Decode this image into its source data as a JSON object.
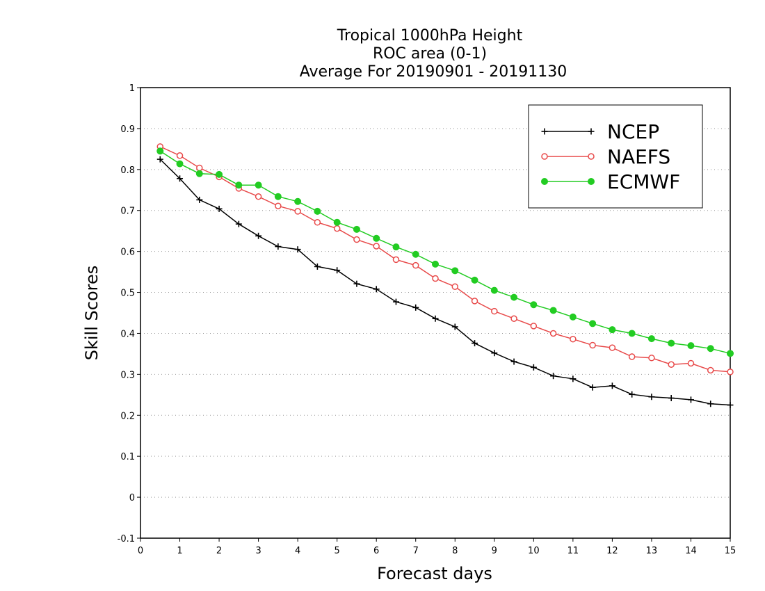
{
  "chart_data": {
    "type": "line",
    "title": [
      "Tropical 1000hPa Height",
      "ROC area (0-1)",
      "Average For 20190901 - 20191130"
    ],
    "xlabel": "Forecast days",
    "ylabel": "Skill Scores",
    "xlim": [
      0,
      15
    ],
    "ylim": [
      -0.1,
      1
    ],
    "x_ticks": [
      "0",
      "1",
      "2",
      "3",
      "4",
      "5",
      "6",
      "7",
      "8",
      "9",
      "10",
      "11",
      "12",
      "13",
      "14",
      "15"
    ],
    "y_ticks": [
      "-0.1",
      "0",
      "0.1",
      "0.2",
      "0.3",
      "0.4",
      "0.5",
      "0.6",
      "0.7",
      "0.8",
      "0.9",
      "1"
    ],
    "grid": "horizontal dotted",
    "legend_position": "top-right",
    "x": [
      0.5,
      1,
      1.5,
      2,
      2.5,
      3,
      3.5,
      4,
      4.5,
      5,
      5.5,
      6,
      6.5,
      7,
      7.5,
      8,
      8.5,
      9,
      9.5,
      10,
      10.5,
      11,
      11.5,
      12,
      12.5,
      13,
      13.5,
      14,
      14.5,
      15
    ],
    "series": [
      {
        "name": "NCEP",
        "color": "#000000",
        "marker": "plus",
        "values": [
          0.825,
          0.778,
          0.726,
          0.704,
          0.667,
          0.638,
          0.612,
          0.605,
          0.563,
          0.554,
          0.521,
          0.508,
          0.477,
          0.463,
          0.436,
          0.416,
          0.376,
          0.352,
          0.331,
          0.317,
          0.296,
          0.289,
          0.268,
          0.272,
          0.251,
          0.245,
          0.242,
          0.238,
          0.228,
          0.225
        ]
      },
      {
        "name": "NAEFS",
        "color": "#e84a4a",
        "marker": "open-circle",
        "values": [
          0.856,
          0.834,
          0.804,
          0.782,
          0.754,
          0.734,
          0.711,
          0.698,
          0.671,
          0.656,
          0.629,
          0.613,
          0.58,
          0.566,
          0.534,
          0.514,
          0.479,
          0.454,
          0.436,
          0.418,
          0.4,
          0.386,
          0.371,
          0.365,
          0.343,
          0.34,
          0.324,
          0.327,
          0.31,
          0.306
        ]
      },
      {
        "name": "ECMWF",
        "color": "#22cc22",
        "marker": "filled-circle",
        "values": [
          0.845,
          0.814,
          0.79,
          0.788,
          0.762,
          0.762,
          0.734,
          0.722,
          0.698,
          0.671,
          0.654,
          0.632,
          0.611,
          0.593,
          0.569,
          0.553,
          0.53,
          0.505,
          0.488,
          0.47,
          0.456,
          0.44,
          0.424,
          0.409,
          0.4,
          0.387,
          0.376,
          0.37,
          0.363,
          0.351
        ]
      }
    ]
  }
}
